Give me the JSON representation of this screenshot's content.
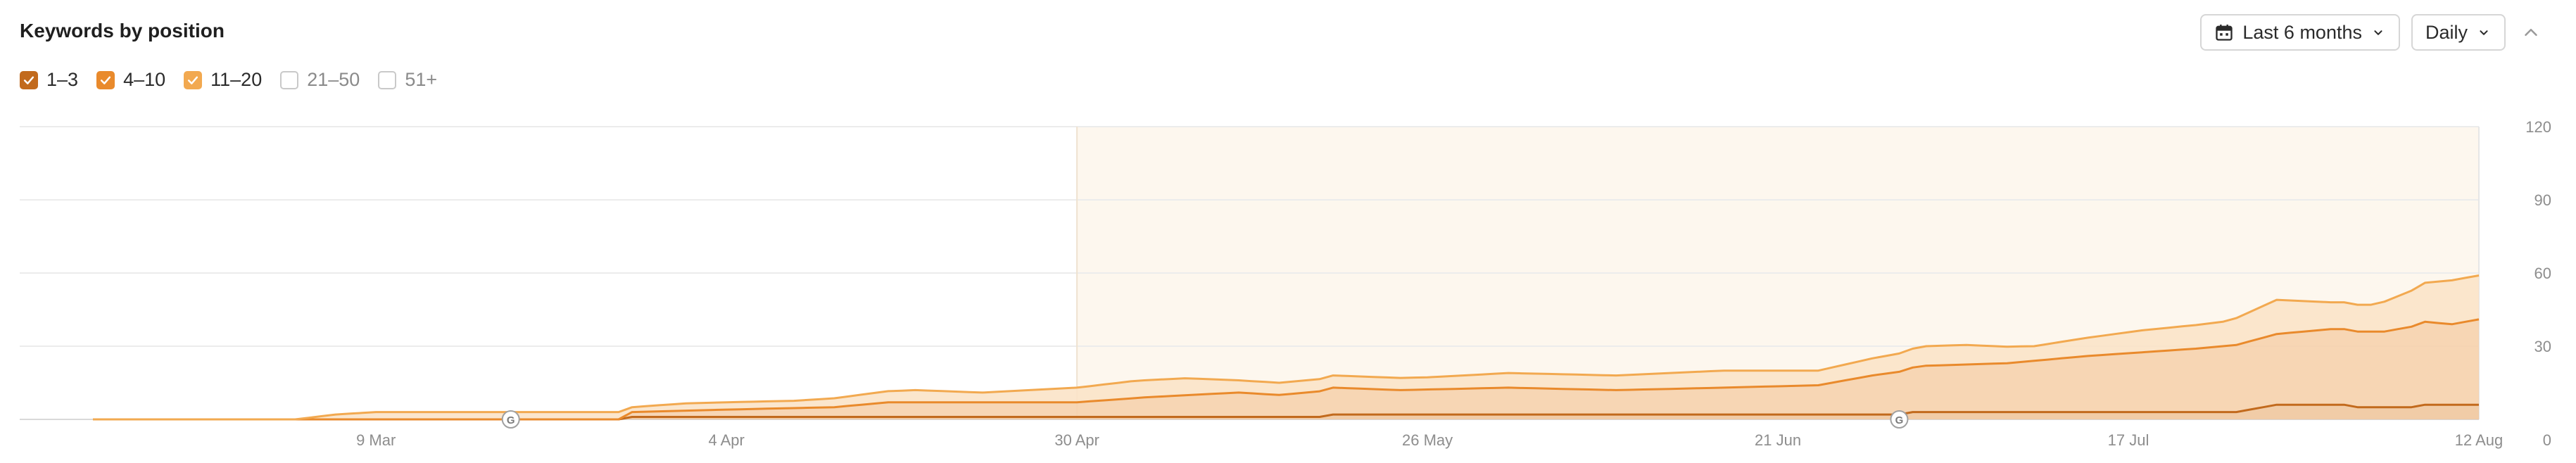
{
  "header": {
    "title": "Keywords by position",
    "range_label": "Last 6 months",
    "granularity_label": "Daily"
  },
  "legend": [
    {
      "label": "1–3",
      "checked": true,
      "color": "#c26a1d"
    },
    {
      "label": "4–10",
      "checked": true,
      "color": "#e98a2c"
    },
    {
      "label": "11–20",
      "checked": true,
      "color": "#f2a950"
    },
    {
      "label": "21–50",
      "checked": false,
      "color": "#c9c9c9"
    },
    {
      "label": "51+",
      "checked": false,
      "color": "#c9c9c9"
    }
  ],
  "icons": {
    "calendar": "calendar-icon",
    "chevron": "chevron-down-icon",
    "collapse": "chevron-up-icon",
    "google_marker": "google-update-icon",
    "check": "check-icon"
  },
  "chart_data": {
    "type": "area",
    "stacked": true,
    "x_start": "2025-02-16",
    "x_end": "2025-08-12",
    "x_ticks": [
      "9 Mar",
      "4 Apr",
      "30 Apr",
      "26 May",
      "21 Jun",
      "17 Jul",
      "12 Aug"
    ],
    "y_ticks": [
      "0",
      "30",
      "60",
      "90",
      "120"
    ],
    "ylim": [
      0,
      120
    ],
    "y_axis_position": "right",
    "grid": true,
    "highlight_range": [
      "2025-04-30",
      "2025-08-12"
    ],
    "markers": [
      {
        "date": "2025-03-19",
        "label": "G"
      },
      {
        "date": "2025-06-30",
        "label": "G"
      }
    ],
    "series": [
      {
        "name": "1–3",
        "color": "#c26a1d",
        "points": [
          [
            "2025-02-16",
            0
          ],
          [
            "2025-03-27",
            0
          ],
          [
            "2025-03-28",
            1
          ],
          [
            "2025-05-18",
            1
          ],
          [
            "2025-05-19",
            2
          ],
          [
            "2025-06-30",
            2
          ],
          [
            "2025-07-01",
            3
          ],
          [
            "2025-07-25",
            3
          ],
          [
            "2025-07-28",
            6
          ],
          [
            "2025-08-02",
            6
          ],
          [
            "2025-08-03",
            5
          ],
          [
            "2025-08-07",
            5
          ],
          [
            "2025-08-08",
            6
          ],
          [
            "2025-08-12",
            6
          ]
        ]
      },
      {
        "name": "4–10",
        "color": "#e98a2c",
        "points": [
          [
            "2025-02-16",
            0
          ],
          [
            "2025-03-27",
            0
          ],
          [
            "2025-03-28",
            2
          ],
          [
            "2025-04-04",
            3
          ],
          [
            "2025-04-12",
            4
          ],
          [
            "2025-04-16",
            6
          ],
          [
            "2025-04-30",
            6
          ],
          [
            "2025-05-05",
            8
          ],
          [
            "2025-05-12",
            10
          ],
          [
            "2025-05-15",
            9
          ],
          [
            "2025-05-19",
            11
          ],
          [
            "2025-05-24",
            10
          ],
          [
            "2025-06-01",
            11
          ],
          [
            "2025-06-09",
            10
          ],
          [
            "2025-06-17",
            11
          ],
          [
            "2025-06-24",
            12
          ],
          [
            "2025-06-28",
            16
          ],
          [
            "2025-07-02",
            19
          ],
          [
            "2025-07-08",
            20
          ],
          [
            "2025-07-14",
            23
          ],
          [
            "2025-07-22",
            26
          ],
          [
            "2025-07-28",
            29
          ],
          [
            "2025-08-01",
            31
          ],
          [
            "2025-08-05",
            31
          ],
          [
            "2025-08-08",
            34
          ],
          [
            "2025-08-10",
            33
          ],
          [
            "2025-08-12",
            35
          ]
        ]
      },
      {
        "name": "11–20",
        "color": "#f2a950",
        "points": [
          [
            "2025-02-16",
            0
          ],
          [
            "2025-03-03",
            0
          ],
          [
            "2025-03-06",
            2
          ],
          [
            "2025-03-09",
            3
          ],
          [
            "2025-03-27",
            3
          ],
          [
            "2025-03-28",
            2
          ],
          [
            "2025-04-01",
            3
          ],
          [
            "2025-04-09",
            3
          ],
          [
            "2025-04-18",
            5
          ],
          [
            "2025-04-23",
            4
          ],
          [
            "2025-04-30",
            6
          ],
          [
            "2025-05-04",
            7
          ],
          [
            "2025-05-08",
            7
          ],
          [
            "2025-05-12",
            5
          ],
          [
            "2025-05-14",
            5
          ],
          [
            "2025-05-18",
            5
          ],
          [
            "2025-05-21",
            5
          ],
          [
            "2025-05-26",
            5
          ],
          [
            "2025-06-01",
            6
          ],
          [
            "2025-06-09",
            6
          ],
          [
            "2025-06-17",
            7
          ],
          [
            "2025-06-24",
            6
          ],
          [
            "2025-06-28",
            7
          ],
          [
            "2025-07-02",
            8
          ],
          [
            "2025-07-05",
            8
          ],
          [
            "2025-07-10",
            6
          ],
          [
            "2025-07-18",
            9
          ],
          [
            "2025-07-24",
            10
          ],
          [
            "2025-07-28",
            14
          ],
          [
            "2025-08-01",
            11
          ],
          [
            "2025-08-04",
            11
          ],
          [
            "2025-08-08",
            16
          ],
          [
            "2025-08-10",
            18
          ],
          [
            "2025-08-12",
            18
          ]
        ]
      }
    ]
  }
}
